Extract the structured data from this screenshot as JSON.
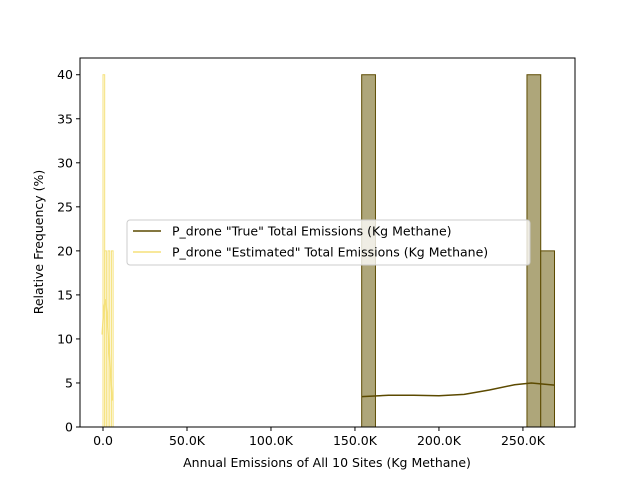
{
  "chart_data": {
    "type": "histogram",
    "xlabel": "Annual Emissions of All 10 Sites (Kg Methane)",
    "ylabel": "Relative Frequency (%)",
    "xlim": [
      -13700,
      281000
    ],
    "ylim": [
      0,
      41.9
    ],
    "xticks": [
      {
        "value": 0,
        "label": "0.0"
      },
      {
        "value": 50000,
        "label": "50.0K"
      },
      {
        "value": 100000,
        "label": "100.0K"
      },
      {
        "value": 150000,
        "label": "150.0K"
      },
      {
        "value": 200000,
        "label": "200.0K"
      },
      {
        "value": 250000,
        "label": "250.0K"
      }
    ],
    "yticks": [
      0,
      5,
      10,
      15,
      20,
      25,
      30,
      35,
      40
    ],
    "legend": "center",
    "series": [
      {
        "name": "P_drone \"True\" Total Emissions (Kg Methane)",
        "color": "#5c4a00",
        "fill": "#aea67a",
        "histtype": "stepfilled",
        "bins": [
          154000,
          162200,
          170400,
          178600,
          186800,
          195000,
          203200,
          211400,
          219600,
          227800,
          236000,
          244200,
          252400,
          260600,
          268800
        ],
        "counts": [
          40,
          0,
          0,
          0,
          0,
          0,
          0,
          0,
          0,
          0,
          0,
          0,
          40,
          20
        ],
        "kde_x": [
          154000,
          170000,
          185000,
          200000,
          215000,
          230000,
          245000,
          255000,
          268800
        ],
        "kde_y": [
          3.45,
          3.6,
          3.6,
          3.55,
          3.7,
          4.2,
          4.8,
          5.0,
          4.75
        ]
      },
      {
        "name": "P_drone \"Estimated\" Total Emissions (Kg Methane)",
        "color": "#f5e17a",
        "fill": "none",
        "histtype": "step",
        "bins": [
          0,
          1000,
          2000,
          3000,
          4000,
          5000,
          6000
        ],
        "counts": [
          40,
          20,
          0,
          20,
          0,
          20
        ],
        "kde_x": [
          -500,
          500,
          1500,
          2500,
          3500,
          4500,
          5500
        ],
        "kde_y": [
          10.5,
          13.5,
          14.5,
          12.5,
          9,
          6,
          3
        ]
      }
    ]
  }
}
